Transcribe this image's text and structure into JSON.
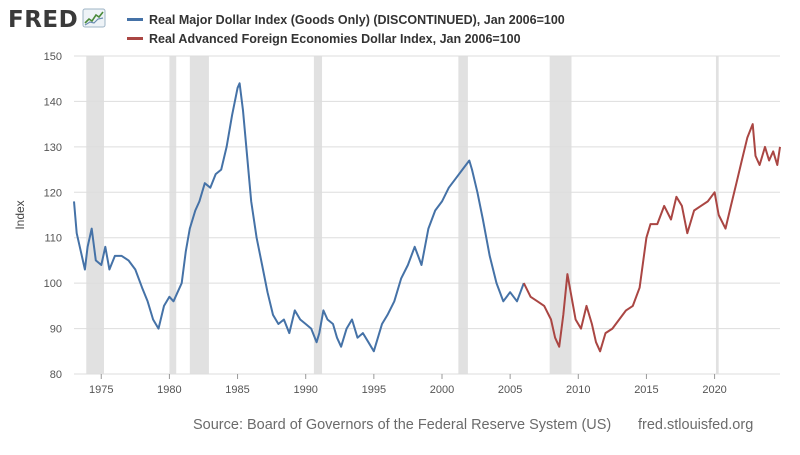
{
  "logo": {
    "text": "FRED",
    "icon": "fred-chart-icon"
  },
  "legend": {
    "placement": "top-left",
    "items": [
      {
        "label": "Real Major Dollar Index (Goods Only) (DISCONTINUED), Jan 2006=100",
        "color": "#4572a7"
      },
      {
        "label": "Real Advanced Foreign Economies Dollar Index, Jan 2006=100",
        "color": "#aa4643"
      }
    ]
  },
  "source": {
    "text": "Source: Board of Governors of the Federal Reserve System (US)",
    "site": "fred.stlouisfed.org"
  },
  "chart_data": {
    "type": "line",
    "title": "",
    "xlabel": "",
    "ylabel": "Index",
    "xlim": [
      1973.0,
      2024.8
    ],
    "ylim": [
      80,
      150
    ],
    "yticks": [
      80,
      90,
      100,
      110,
      120,
      130,
      140,
      150
    ],
    "xticks": [
      1975,
      1980,
      1985,
      1990,
      1995,
      2000,
      2005,
      2010,
      2015,
      2020
    ],
    "ytick_labels": [
      "80",
      "90",
      "100",
      "110",
      "120",
      "130",
      "140",
      "150"
    ],
    "xtick_labels": [
      "1975",
      "1980",
      "1985",
      "1990",
      "1995",
      "2000",
      "2005",
      "2010",
      "2015",
      "2020"
    ],
    "grid": "horizontal",
    "recession_shading": [
      [
        1973.9,
        1975.2
      ],
      [
        1980.0,
        1980.5
      ],
      [
        1981.5,
        1982.9
      ],
      [
        1990.6,
        1991.2
      ],
      [
        2001.2,
        2001.9
      ],
      [
        2007.9,
        2009.5
      ],
      [
        2020.1,
        2020.3
      ]
    ],
    "series": [
      {
        "name": "Real Major Dollar Index (Goods Only) (DISCONTINUED), Jan 2006=100",
        "color": "#4572a7",
        "x": [
          1973.0,
          1973.2,
          1973.5,
          1973.8,
          1974.0,
          1974.3,
          1974.6,
          1975.0,
          1975.3,
          1975.6,
          1976.0,
          1976.5,
          1977.0,
          1977.5,
          1978.0,
          1978.4,
          1978.8,
          1979.2,
          1979.6,
          1980.0,
          1980.3,
          1980.6,
          1980.9,
          1981.2,
          1981.5,
          1981.9,
          1982.2,
          1982.6,
          1983.0,
          1983.4,
          1983.8,
          1984.2,
          1984.6,
          1985.0,
          1985.15,
          1985.4,
          1985.7,
          1986.0,
          1986.4,
          1986.8,
          1987.2,
          1987.6,
          1988.0,
          1988.4,
          1988.8,
          1989.2,
          1989.6,
          1990.0,
          1990.4,
          1990.8,
          1991.0,
          1991.3,
          1991.6,
          1992.0,
          1992.3,
          1992.6,
          1993.0,
          1993.4,
          1993.8,
          1994.2,
          1994.6,
          1995.0,
          1995.3,
          1995.6,
          1996.0,
          1996.5,
          1997.0,
          1997.5,
          1998.0,
          1998.5,
          1999.0,
          1999.5,
          2000.0,
          2000.5,
          2001.0,
          2001.5,
          2002.0,
          2002.2,
          2002.6,
          2003.0,
          2003.5,
          2004.0,
          2004.5,
          2005.0,
          2005.5,
          2006.0
        ],
        "values": [
          118,
          111,
          107,
          103,
          108,
          112,
          105,
          104,
          108,
          103,
          106,
          106,
          105,
          103,
          99,
          96,
          92,
          90,
          95,
          97,
          96,
          98,
          100,
          107,
          112,
          116,
          118,
          122,
          121,
          124,
          125,
          130,
          137,
          143,
          144,
          138,
          128,
          118,
          110,
          104,
          98,
          93,
          91,
          92,
          89,
          94,
          92,
          91,
          90,
          87,
          89,
          94,
          92,
          91,
          88,
          86,
          90,
          92,
          88,
          89,
          87,
          85,
          88,
          91,
          93,
          96,
          101,
          104,
          108,
          104,
          112,
          116,
          118,
          121,
          123,
          125,
          127,
          125,
          120,
          114,
          106,
          100,
          96,
          98,
          96,
          100
        ]
      },
      {
        "name": "Real Advanced Foreign Economies Dollar Index, Jan 2006=100",
        "color": "#aa4643",
        "x": [
          2006.0,
          2006.5,
          2007.0,
          2007.5,
          2008.0,
          2008.3,
          2008.6,
          2008.9,
          2009.2,
          2009.5,
          2009.8,
          2010.2,
          2010.6,
          2011.0,
          2011.3,
          2011.6,
          2012.0,
          2012.5,
          2013.0,
          2013.5,
          2014.0,
          2014.5,
          2015.0,
          2015.3,
          2015.8,
          2016.3,
          2016.8,
          2017.2,
          2017.6,
          2018.0,
          2018.5,
          2019.0,
          2019.5,
          2020.0,
          2020.3,
          2020.8,
          2021.2,
          2021.6,
          2022.0,
          2022.4,
          2022.8,
          2023.0,
          2023.3,
          2023.7,
          2024.0,
          2024.3,
          2024.6,
          2024.8
        ],
        "values": [
          100,
          97,
          96,
          95,
          92,
          88,
          86,
          93,
          102,
          97,
          92,
          90,
          95,
          91,
          87,
          85,
          89,
          90,
          92,
          94,
          95,
          99,
          110,
          113,
          113,
          117,
          114,
          119,
          117,
          111,
          116,
          117,
          118,
          120,
          115,
          112,
          117,
          122,
          127,
          132,
          135,
          128,
          126,
          130,
          127,
          129,
          126,
          130
        ]
      }
    ]
  }
}
